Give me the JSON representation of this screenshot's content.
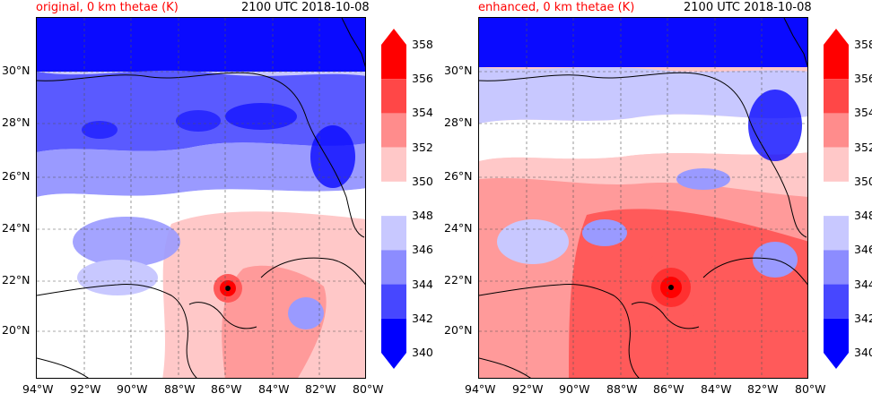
{
  "panels": [
    {
      "id": "original",
      "title_left": "original, 0 km thetae (K)",
      "title_right": "2100 UTC 2018-10-08"
    },
    {
      "id": "enhanced",
      "title_left": "enhanced, 0 km thetae (K)",
      "title_right": "2100 UTC 2018-10-08"
    }
  ],
  "axes": {
    "lat_labels": [
      "30°N",
      "28°N",
      "26°N",
      "24°N",
      "22°N",
      "20°N"
    ],
    "lon_labels": [
      "94°W",
      "92°W",
      "90°W",
      "88°W",
      "86°W",
      "84°W",
      "82°W",
      "80°W"
    ]
  },
  "colorbar": {
    "labels": [
      "358",
      "356",
      "354",
      "352",
      "350",
      "348",
      "346",
      "344",
      "342",
      "340"
    ],
    "colors": [
      "#ff0000",
      "#ff4747",
      "#ff8c8c",
      "#ffc8c8",
      "#ffffff",
      "#c8c8ff",
      "#8c8cff",
      "#4747ff",
      "#0000ff"
    ],
    "extend_high_color": "#ff0000",
    "extend_low_color": "#0000ff",
    "units": "K"
  },
  "palette": {
    "deep_blue": "#0a0aff",
    "mid_blue": "#5a5aff",
    "light_blue": "#9a9aff",
    "pale_blue": "#c8c8ff",
    "white": "#ffffff",
    "pale_red": "#ffc8c8",
    "light_red": "#ff9a9a",
    "mid_red": "#ff5a5a",
    "deep_red": "#ff0000",
    "coast": "#000000",
    "grid": "#555555"
  }
}
